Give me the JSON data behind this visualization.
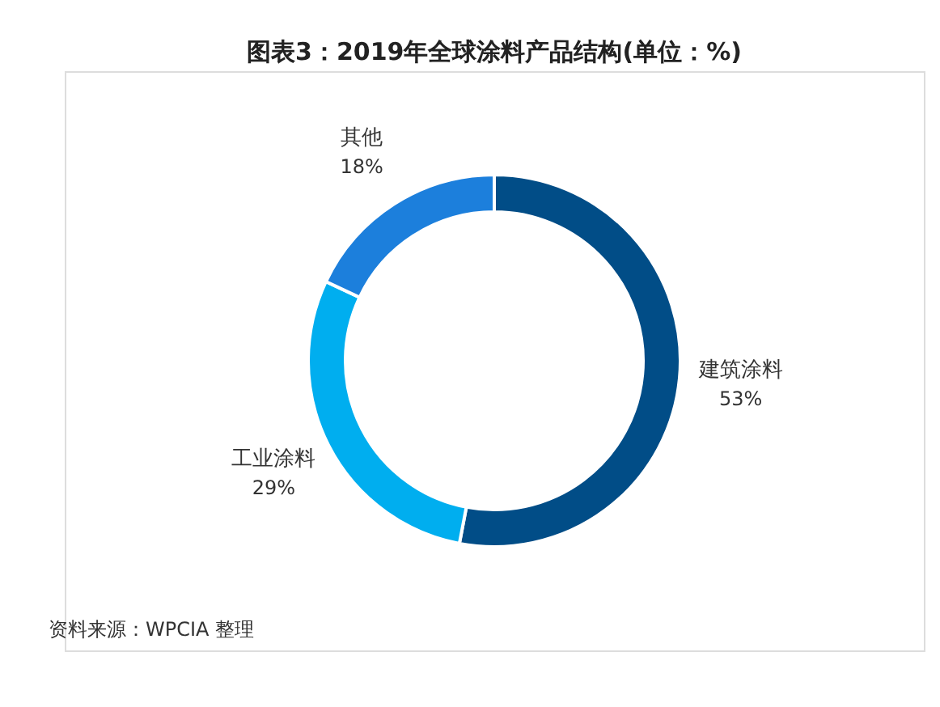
{
  "chart_data": {
    "type": "donut",
    "title": "图表3：2019年全球涂料产品结构(单位：%)",
    "categories": [
      "建筑涂料",
      "工业涂料",
      "其他"
    ],
    "values": [
      53,
      29,
      18
    ],
    "colors": [
      "#014d87",
      "#00aeef",
      "#1c7fdc"
    ],
    "value_labels": [
      "53%",
      "29%",
      "18%"
    ],
    "legend": false,
    "annotations": [
      "资料来源：WPCIA 整理"
    ]
  }
}
